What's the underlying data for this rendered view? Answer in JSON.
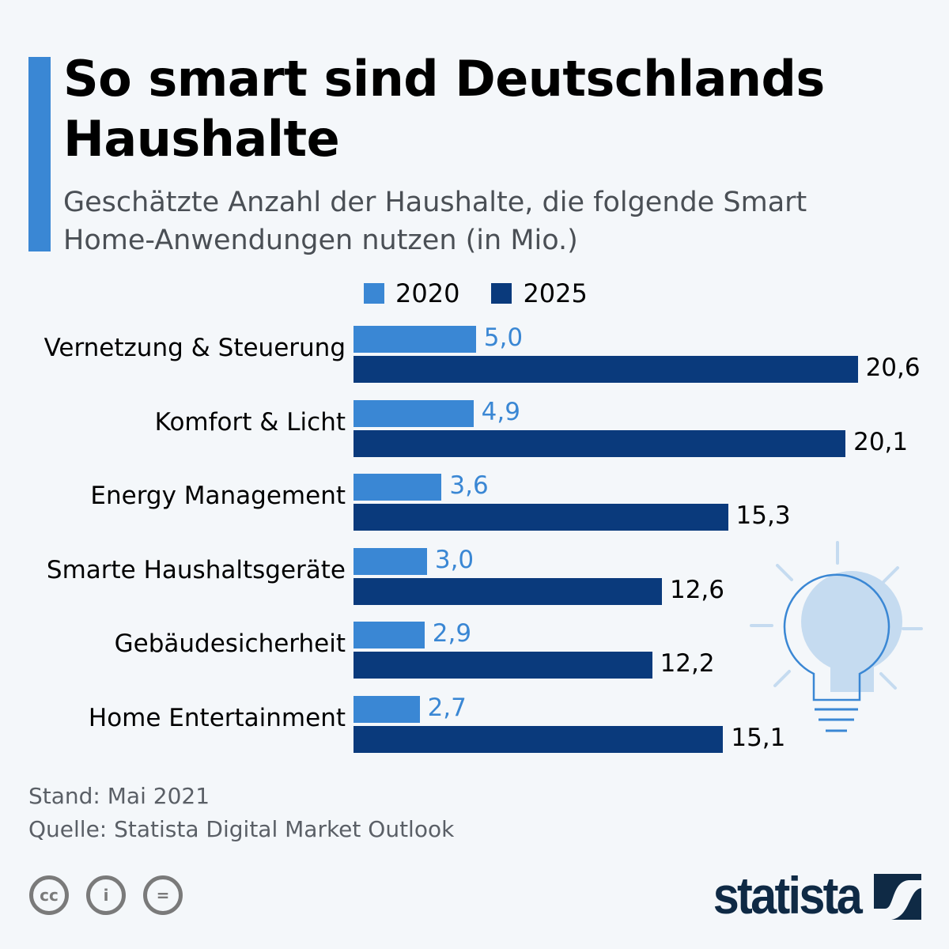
{
  "title": "So smart sind Deutschlands Haushalte",
  "subtitle": "Geschätzte Anzahl der Haushalte, die folgende Smart Home-Anwendungen nutzen (in Mio.)",
  "footer": {
    "stand": "Stand: Mai 2021",
    "quelle": "Quelle: Statista Digital Market Outlook"
  },
  "brand": "statista",
  "colors": {
    "2020": "#3a87d4",
    "2025": "#0a3a7c",
    "accent": "#3a87d4"
  },
  "chart_data": {
    "type": "bar",
    "orientation": "horizontal",
    "categories": [
      "Vernetzung & Steuerung",
      "Komfort & Licht",
      "Energy Management",
      "Smarte Haushaltsgeräte",
      "Gebäudesicherheit",
      "Home Entertainment"
    ],
    "series": [
      {
        "name": "2020",
        "values": [
          5.0,
          4.9,
          3.6,
          3.0,
          2.9,
          2.7
        ],
        "labels": [
          "5,0",
          "4,9",
          "3,6",
          "3,0",
          "2,9",
          "2,7"
        ]
      },
      {
        "name": "2025",
        "values": [
          20.6,
          20.1,
          15.3,
          12.6,
          12.2,
          15.1
        ],
        "labels": [
          "20,6",
          "20,1",
          "15,3",
          "12,6",
          "12,2",
          "15,1"
        ]
      }
    ],
    "legend": "top"
  }
}
